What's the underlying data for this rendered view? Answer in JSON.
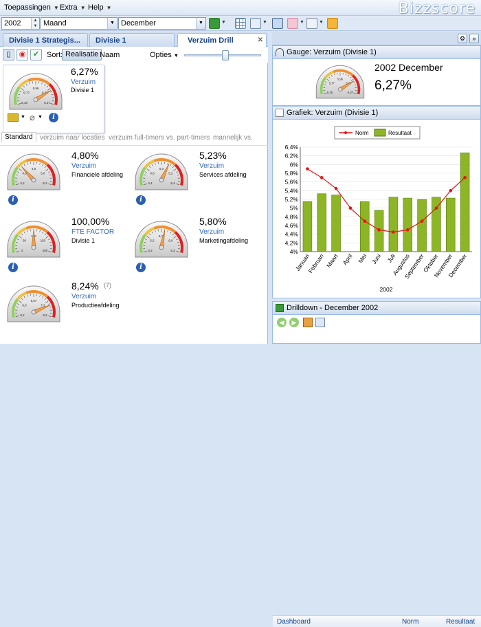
{
  "menu": {
    "items": [
      "Toepassingen",
      "Extra",
      "Help"
    ],
    "brand": "Bizzscore"
  },
  "toolbar": {
    "year": "2002",
    "period_type": "Maand",
    "month": "December"
  },
  "tabs": [
    {
      "label": "Divisie 1 Strategis..."
    },
    {
      "label": "Divisie 1"
    },
    {
      "label": "Verzuim Drill"
    }
  ],
  "subbar": {
    "sort_label": "Sort:",
    "sort_value": "Realisatie",
    "naam_label": "Naam",
    "opties_label": "Opties"
  },
  "popup_gauge": {
    "value": "6,27%",
    "kpi": "Verzuim",
    "subject": "Divisie 1",
    "ticks": [
      "5,18",
      "5,77",
      "5,96",
      "6,08",
      "6,27"
    ],
    "level": 0.78
  },
  "filter_tabs": [
    "Standard",
    "verzuim naar locaties",
    "verzuim full-timers vs. part-timers",
    "mannelijk vs."
  ],
  "gauges": [
    {
      "value": "4,80%",
      "kpi": "Verzuim",
      "subject": "Financiele afdeling",
      "ticks": [
        "4,2",
        "4,6",
        "4,8",
        "5,0",
        "5,2"
      ],
      "level": 0.3,
      "extra": ""
    },
    {
      "value": "5,23%",
      "kpi": "Verzuim",
      "subject": "Services afdeling",
      "ticks": [
        "4,4",
        "4,8",
        "5,0",
        "5,2",
        "5,4"
      ],
      "level": 0.62,
      "extra": ""
    },
    {
      "value": "100,00%",
      "kpi": "FTE FACTOR",
      "subject": "Divisie 1",
      "ticks": [
        "0",
        "50",
        "100",
        "150",
        "200"
      ],
      "level": 0.5,
      "extra": ""
    },
    {
      "value": "5,80%",
      "kpi": "Verzuim",
      "subject": "Marketingafdeling",
      "ticks": [
        "5,2",
        "5,5",
        "5,75",
        "6,0",
        "6,3"
      ],
      "level": 0.55,
      "extra": ""
    },
    {
      "value": "8,24%",
      "kpi": "Verzuim",
      "subject": "Productieafdeling",
      "ticks": [
        "5,2",
        "6,0",
        "6,57",
        "7,2",
        "8,2"
      ],
      "level": 0.82,
      "extra": "(7)"
    }
  ],
  "gauge_panel": {
    "title": "Gauge: Verzuim (Divisie 1)",
    "period": "2002 December",
    "value": "6,27%"
  },
  "chart_panel": {
    "title": "Grafiek: Verzuim (Divisie 1)"
  },
  "chart_data": {
    "type": "bar",
    "categories": [
      "Januari",
      "Februari",
      "Maart",
      "April",
      "Mei",
      "Juni",
      "Juli",
      "Augustus",
      "September",
      "Oktober",
      "November",
      "December"
    ],
    "series": [
      {
        "name": "Resultaat",
        "type": "bar",
        "values": [
          5.15,
          5.33,
          5.3,
          4.0,
          5.15,
          4.95,
          5.25,
          5.23,
          5.2,
          5.25,
          5.23,
          6.27
        ]
      },
      {
        "name": "Norm",
        "type": "line",
        "values": [
          5.9,
          5.7,
          5.45,
          5.0,
          4.7,
          4.5,
          4.45,
          4.5,
          4.7,
          5.0,
          5.4,
          5.7
        ]
      }
    ],
    "yticks": [
      "4%",
      "4,2%",
      "4,4%",
      "4,6%",
      "4,8%",
      "5%",
      "5,2%",
      "5,4%",
      "5,6%",
      "5,8%",
      "6%",
      "6,2%",
      "6,4%"
    ],
    "ylim": [
      4.0,
      6.4
    ],
    "xlabel": "2002",
    "ylabel": "",
    "legend": "top",
    "colors": {
      "bar": "#8db526",
      "line": "#ee1111"
    }
  },
  "drilldown": {
    "title": "Drilldown - December 2002",
    "col_dashboard": "Dashboard",
    "col_norm": "Norm",
    "col_resultaat": "Resultaat"
  }
}
